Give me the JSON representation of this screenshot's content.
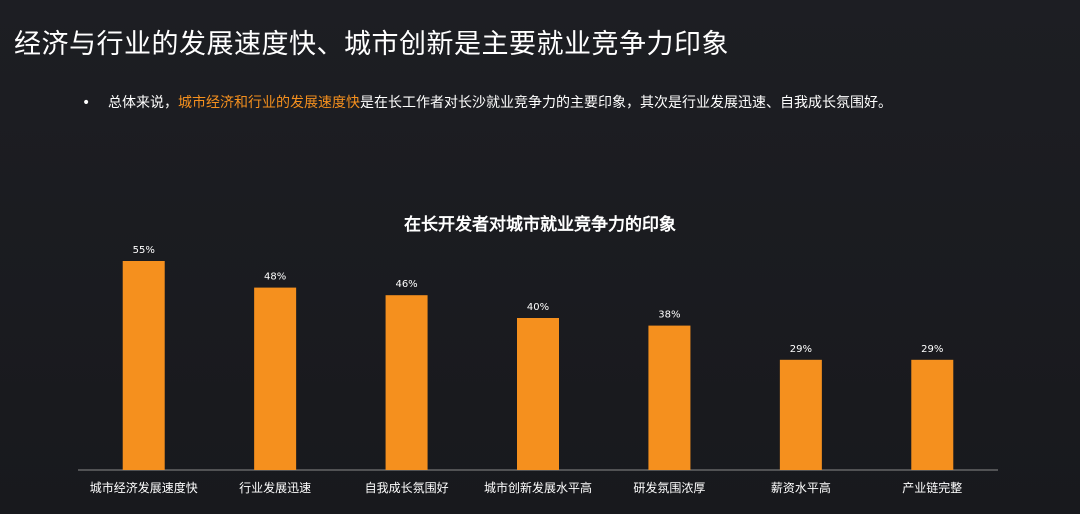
{
  "slide": {
    "title": "经济与行业的发展速度快、城市创新是主要就业竞争力印象",
    "bullet": {
      "marker": "•",
      "prefix": "总体来说，",
      "highlight": "城市经济和行业的发展速度快",
      "suffix": "是在长工作者对长沙就业竞争力的主要印象，其次是行业发展迅速、自我成长氛围好。"
    }
  },
  "colors": {
    "background": "#1b1c21",
    "bar": "#f5901e",
    "highlight": "#f5901e",
    "axis": "#8a8a8a",
    "text": "#ffffff"
  },
  "chart_data": {
    "type": "bar",
    "title": "在长开发者对城市就业竞争力的印象",
    "categories": [
      "城市经济发展速度快",
      "行业发展迅速",
      "自我成长氛围好",
      "城市创新发展水平高",
      "研发氛围浓厚",
      "薪资水平高",
      "产业链完整"
    ],
    "values": [
      55,
      48,
      46,
      40,
      38,
      29,
      29
    ],
    "value_labels": [
      "55%",
      "48%",
      "46%",
      "40%",
      "38%",
      "29%",
      "29%"
    ],
    "ylim": [
      0,
      60
    ],
    "xlabel": "",
    "ylabel": "",
    "grid": false,
    "legend": "none"
  }
}
